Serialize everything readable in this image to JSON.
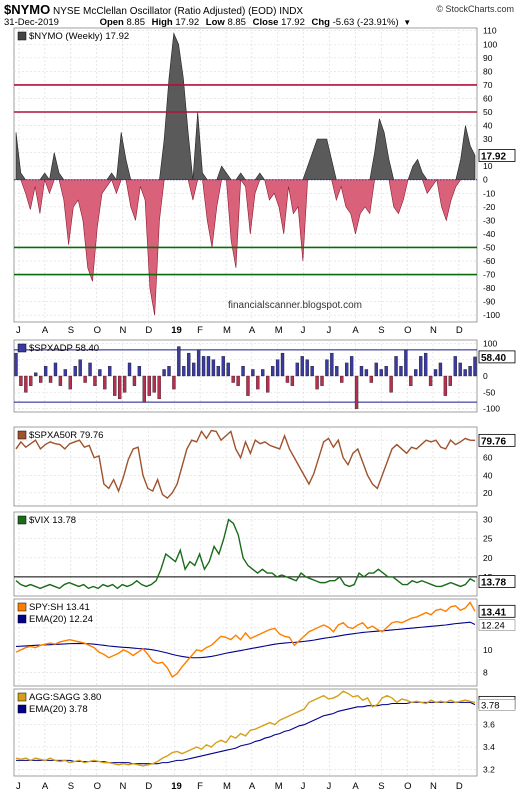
{
  "header": {
    "symbol": "$NYMO",
    "name": "NYSE McClellan Oscillator (Ratio Adjusted) (EOD)",
    "exchange": "INDX",
    "date": "31-Dec-2019",
    "open_label": "Open",
    "open": "8.85",
    "high_label": "High",
    "high": "17.92",
    "low_label": "Low",
    "low": "8.85",
    "close_label": "Close",
    "close": "17.92",
    "chg_label": "Chg",
    "chg": "-5.63 (-23.91%)",
    "chg_arrow": "▼",
    "brand": "© StockCharts.com",
    "watermark": "financialscanner.blogspot.com"
  },
  "x_axis": {
    "labels": [
      "J",
      "A",
      "S",
      "O",
      "N",
      "D",
      "19",
      "F",
      "M",
      "A",
      "M",
      "J",
      "J",
      "A",
      "S",
      "O",
      "N",
      "D"
    ],
    "bold_label": "19"
  },
  "chart_data": [
    {
      "type": "area",
      "panel": "nymo",
      "legend": "$NYMO (Weekly) 17.92",
      "last_value": "17.92",
      "y_ticks": [
        110,
        100,
        90,
        80,
        70,
        60,
        50,
        40,
        30,
        20,
        10,
        0,
        -10,
        -20,
        -30,
        -40,
        -50,
        -60,
        -70,
        -80,
        -90,
        -100
      ],
      "ylim": [
        -105,
        112
      ],
      "reference_lines": [
        {
          "value": 70,
          "color": "#b0103a"
        },
        {
          "value": 50,
          "color": "#b0103a"
        },
        {
          "value": -50,
          "color": "#0a6b0a"
        },
        {
          "value": -70,
          "color": "#0a6b0a"
        }
      ],
      "positive_color": "#5a5a5a",
      "negative_color": "#d9627a",
      "values": [
        35,
        5,
        -10,
        -22,
        -5,
        -25,
        5,
        -10,
        20,
        5,
        -15,
        -48,
        -20,
        -15,
        -30,
        -65,
        -75,
        -35,
        -10,
        -5,
        5,
        -10,
        35,
        15,
        -20,
        -30,
        -5,
        -15,
        -80,
        -100,
        -30,
        30,
        75,
        108,
        100,
        75,
        35,
        -15,
        50,
        5,
        -30,
        -50,
        -20,
        10,
        5,
        -45,
        -65,
        5,
        -5,
        -40,
        -10,
        5,
        0,
        -15,
        -10,
        -20,
        -40,
        -5,
        -25,
        -20,
        -60,
        10,
        20,
        30,
        30,
        30,
        15,
        -15,
        -5,
        -20,
        -25,
        -40,
        -25,
        -20,
        -25,
        20,
        45,
        35,
        15,
        -20,
        -25,
        -15,
        0,
        10,
        15,
        5,
        -10,
        -5,
        0,
        -20,
        -30,
        -15,
        -5,
        15,
        40,
        25,
        17.92
      ]
    },
    {
      "type": "bar",
      "panel": "spxadp",
      "legend": "$SPXADP 58.40",
      "last_value": "58.40",
      "y_ticks": [
        100,
        50,
        0,
        -50,
        -100
      ],
      "ylim": [
        -110,
        110
      ],
      "reference_lines": [
        {
          "value": 80,
          "color": "#1a1a8c"
        },
        {
          "value": -80,
          "color": "#1a1a8c"
        }
      ],
      "positive_color": "#3a3aa0",
      "negative_color": "#b43050",
      "values": [
        70,
        -30,
        -50,
        -30,
        10,
        -20,
        30,
        -20,
        40,
        -30,
        20,
        -40,
        30,
        50,
        -20,
        40,
        -30,
        20,
        -40,
        30,
        -60,
        -70,
        -50,
        40,
        -30,
        30,
        -80,
        -60,
        -50,
        -70,
        20,
        30,
        -40,
        90,
        30,
        70,
        40,
        80,
        60,
        60,
        50,
        30,
        60,
        40,
        -20,
        -30,
        30,
        -60,
        20,
        -40,
        20,
        -50,
        30,
        50,
        70,
        -20,
        -30,
        40,
        60,
        50,
        30,
        -40,
        -30,
        50,
        70,
        30,
        -20,
        40,
        60,
        -100,
        30,
        20,
        -20,
        40,
        20,
        30,
        -50,
        60,
        30,
        80,
        -30,
        20,
        60,
        70,
        -30,
        20,
        40,
        -60,
        -30,
        60,
        40,
        20,
        30,
        58.4
      ]
    },
    {
      "type": "line",
      "panel": "spxa50r",
      "legend": "$SPXA50R 79.76",
      "last_value": "79.76",
      "y_ticks": [
        80,
        60,
        40,
        20
      ],
      "ylim": [
        5,
        95
      ],
      "color": "#a0522d",
      "values": [
        70,
        78,
        72,
        76,
        80,
        70,
        75,
        78,
        76,
        75,
        70,
        76,
        78,
        80,
        72,
        74,
        60,
        62,
        30,
        25,
        35,
        22,
        38,
        58,
        70,
        72,
        40,
        25,
        22,
        35,
        18,
        14,
        20,
        30,
        50,
        70,
        80,
        78,
        90,
        82,
        91,
        90,
        80,
        85,
        90,
        70,
        60,
        78,
        65,
        80,
        76,
        78,
        74,
        72,
        70,
        85,
        70,
        60,
        50,
        40,
        30,
        42,
        60,
        78,
        82,
        72,
        80,
        60,
        52,
        65,
        70,
        55,
        40,
        30,
        25,
        40,
        55,
        70,
        75,
        70,
        65,
        72,
        70,
        75,
        80,
        78,
        80,
        72,
        70,
        80,
        75,
        78,
        82,
        80,
        79.76
      ]
    },
    {
      "type": "line",
      "panel": "vix",
      "legend": "$VIX 13.78",
      "last_value": "13.78",
      "y_ticks": [
        30,
        25,
        20,
        15
      ],
      "ylim": [
        10,
        32
      ],
      "color": "#1a6b1a",
      "reference_lines": [
        {
          "value": 15,
          "color": "#000000"
        }
      ],
      "values": [
        14,
        13,
        12.5,
        13,
        12.5,
        12,
        12.5,
        13,
        12.5,
        12,
        13,
        13.5,
        13,
        12.5,
        13,
        12,
        12.5,
        12,
        13,
        12.5,
        13,
        12,
        13,
        12.5,
        13,
        14,
        13,
        12.5,
        13,
        14,
        17,
        21,
        20,
        19,
        22,
        17,
        19,
        18,
        21,
        17,
        19,
        23,
        21,
        25,
        30,
        29,
        26,
        20,
        18,
        17,
        16,
        17,
        16,
        16,
        15,
        15.5,
        15,
        14.5,
        14,
        16,
        15,
        14.5,
        14,
        13.5,
        13.5,
        14,
        14,
        15,
        13,
        12.5,
        13,
        16,
        15,
        16,
        16,
        17,
        16,
        15,
        15,
        14,
        13,
        13,
        14,
        13.5,
        14,
        13.5,
        13,
        12.5,
        12.5,
        13,
        13.5,
        13,
        12.5,
        13,
        14.5,
        13.78
      ]
    },
    {
      "type": "line",
      "panel": "spysh",
      "legend": "SPY:SH 13.41",
      "last_value": "13.41",
      "ema_legend": "EMA(20) 12.24",
      "ema_value": "12.24",
      "y_ticks": [
        12,
        10,
        8
      ],
      "ylim": [
        6.8,
        14.5
      ],
      "color": "#ff7f00",
      "ema_color": "#00008b",
      "values": [
        9.8,
        10,
        10.2,
        10.3,
        10.2,
        10.4,
        10.5,
        10.6,
        10.5,
        10.7,
        10.8,
        10.9,
        10.8,
        10.7,
        10.6,
        10.4,
        10.2,
        9.8,
        9.6,
        9.3,
        9.5,
        9.7,
        10,
        9.8,
        9.5,
        9.8,
        10.1,
        9.6,
        9,
        8.8,
        8.9,
        8.4,
        7.6,
        7.9,
        8.5,
        9,
        9.5,
        10,
        9.9,
        10.2,
        10.4,
        10.8,
        11.2,
        11.1,
        10.9,
        11.3,
        10.9,
        11.5,
        11,
        11.2,
        11.4,
        11.6,
        11.8,
        11.9,
        11.4,
        11.2,
        11.1,
        10.4,
        10.8,
        11.2,
        11.6,
        11.8,
        12,
        12.2,
        12,
        11.6,
        12.2,
        12.4,
        12,
        11.9,
        12.2,
        12.4,
        11.9,
        12.1,
        11.8,
        11.6,
        12,
        12.4,
        12.5,
        12.4,
        12.6,
        12.8,
        12.9,
        13.1,
        13.3,
        13.1,
        13.5,
        13.6,
        13.4,
        13.8,
        13.9,
        13.5,
        13.7,
        14.2,
        13.41
      ],
      "ema_values": [
        10.3,
        10.32,
        10.35,
        10.38,
        10.4,
        10.42,
        10.44,
        10.46,
        10.48,
        10.5,
        10.52,
        10.55,
        10.56,
        10.57,
        10.56,
        10.54,
        10.5,
        10.45,
        10.4,
        10.34,
        10.3,
        10.26,
        10.22,
        10.2,
        10.16,
        10.12,
        10.1,
        10.06,
        10,
        9.92,
        9.82,
        9.72,
        9.6,
        9.5,
        9.42,
        9.35,
        9.3,
        9.3,
        9.32,
        9.36,
        9.42,
        9.5,
        9.6,
        9.7,
        9.78,
        9.86,
        9.94,
        10.02,
        10.1,
        10.18,
        10.26,
        10.34,
        10.42,
        10.5,
        10.56,
        10.6,
        10.64,
        10.66,
        10.7,
        10.75,
        10.8,
        10.86,
        10.94,
        11.02,
        11.08,
        11.14,
        11.22,
        11.3,
        11.36,
        11.42,
        11.48,
        11.54,
        11.58,
        11.62,
        11.65,
        11.68,
        11.72,
        11.76,
        11.8,
        11.84,
        11.88,
        11.92,
        11.96,
        12,
        12.04,
        12.08,
        12.12,
        12.16,
        12.2,
        12.26,
        12.32,
        12.36,
        12.4,
        12.45,
        12.24
      ]
    },
    {
      "type": "line",
      "panel": "aggsagg",
      "legend": "AGG:SAGG 3.80",
      "last_value": "3.80",
      "ema_legend": "EMA(20) 3.78",
      "ema_value": "3.78",
      "y_ticks": [
        3.6,
        3.4,
        3.2
      ],
      "ylim": [
        3.14,
        3.92
      ],
      "color": "#d4a017",
      "ema_color": "#00008b",
      "values": [
        3.3,
        3.29,
        3.3,
        3.28,
        3.3,
        3.29,
        3.28,
        3.3,
        3.28,
        3.27,
        3.28,
        3.26,
        3.27,
        3.28,
        3.26,
        3.27,
        3.28,
        3.27,
        3.26,
        3.26,
        3.25,
        3.24,
        3.25,
        3.24,
        3.25,
        3.24,
        3.23,
        3.24,
        3.25,
        3.27,
        3.3,
        3.32,
        3.35,
        3.36,
        3.34,
        3.36,
        3.38,
        3.4,
        3.38,
        3.42,
        3.4,
        3.44,
        3.46,
        3.44,
        3.5,
        3.48,
        3.52,
        3.5,
        3.55,
        3.56,
        3.58,
        3.6,
        3.62,
        3.6,
        3.64,
        3.66,
        3.68,
        3.7,
        3.72,
        3.74,
        3.8,
        3.82,
        3.84,
        3.86,
        3.83,
        3.84,
        3.86,
        3.9,
        3.88,
        3.85,
        3.86,
        3.82,
        3.84,
        3.76,
        3.78,
        3.84,
        3.86,
        3.84,
        3.8,
        3.83,
        3.82,
        3.8,
        3.81,
        3.8,
        3.79,
        3.82,
        3.8,
        3.81,
        3.8,
        3.82,
        3.8,
        3.81,
        3.82,
        3.81,
        3.8
      ],
      "ema_values": [
        3.28,
        3.28,
        3.28,
        3.28,
        3.28,
        3.28,
        3.28,
        3.28,
        3.28,
        3.28,
        3.28,
        3.28,
        3.27,
        3.27,
        3.27,
        3.27,
        3.27,
        3.27,
        3.27,
        3.26,
        3.26,
        3.26,
        3.26,
        3.26,
        3.25,
        3.25,
        3.25,
        3.25,
        3.25,
        3.25,
        3.26,
        3.26,
        3.27,
        3.28,
        3.28,
        3.29,
        3.3,
        3.31,
        3.32,
        3.33,
        3.34,
        3.35,
        3.36,
        3.37,
        3.38,
        3.39,
        3.41,
        3.42,
        3.43,
        3.45,
        3.46,
        3.48,
        3.49,
        3.51,
        3.52,
        3.54,
        3.55,
        3.57,
        3.59,
        3.6,
        3.62,
        3.64,
        3.66,
        3.68,
        3.69,
        3.7,
        3.72,
        3.73,
        3.74,
        3.75,
        3.76,
        3.76,
        3.77,
        3.77,
        3.77,
        3.78,
        3.78,
        3.79,
        3.79,
        3.79,
        3.79,
        3.8,
        3.8,
        3.8,
        3.8,
        3.8,
        3.8,
        3.8,
        3.8,
        3.8,
        3.8,
        3.8,
        3.8,
        3.8,
        3.78
      ]
    }
  ]
}
